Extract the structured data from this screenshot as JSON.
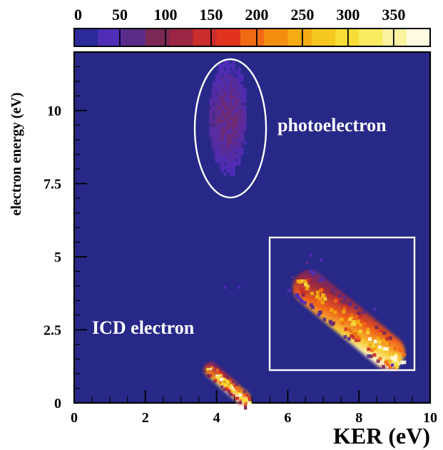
{
  "chart_data": {
    "type": "heatmap",
    "title": "",
    "xlabel": "KER (eV)",
    "ylabel": "electron energy (eV)",
    "xlim": [
      0,
      10
    ],
    "ylim": [
      0,
      12
    ],
    "x_ticks": [
      0,
      2,
      4,
      6,
      8,
      10
    ],
    "x_tick_labels": [
      "0",
      "2",
      "4",
      "6",
      "8",
      "10"
    ],
    "y_ticks": [
      0,
      2.5,
      5,
      7.5,
      10
    ],
    "y_tick_labels": [
      "0",
      "2.5",
      "5",
      "7.5",
      "10"
    ],
    "colorbar": {
      "range": [
        0,
        390
      ],
      "ticks": [
        0,
        50,
        100,
        150,
        200,
        250,
        300,
        350
      ],
      "tick_labels": [
        "0",
        "50",
        "100",
        "150",
        "200",
        "250",
        "300",
        "350"
      ],
      "colors": [
        "#2c2a9b",
        "#4f2db7",
        "#5a2c88",
        "#7b2857",
        "#9a2644",
        "#c92d2d",
        "#e2331f",
        "#f06a15",
        "#f48e11",
        "#f5ab13",
        "#f6c71f",
        "#f7dd35",
        "#f9ec62",
        "#fbf3a0",
        "#fffbe0"
      ]
    },
    "regions": [
      {
        "name": "photoelectron",
        "x_range": [
          3.8,
          4.9
        ],
        "y_range": [
          7.4,
          11.6
        ],
        "center_x": 4.3,
        "center_y": 9.7,
        "peak_count": 110
      },
      {
        "name": "ICD electron",
        "x_from": [
          3.7,
          1.3
        ],
        "x_to": [
          4.9,
          0.0
        ],
        "center_x": 4.3,
        "center_y": 0.7,
        "peak_count": 340
      }
    ],
    "annotations": [
      {
        "label": "photoelectron",
        "x": 7.5,
        "y": 9.6
      },
      {
        "label": "ICD electron",
        "x": 2.6,
        "y": 2.5
      }
    ],
    "grid": false,
    "background_color": "#272887"
  }
}
